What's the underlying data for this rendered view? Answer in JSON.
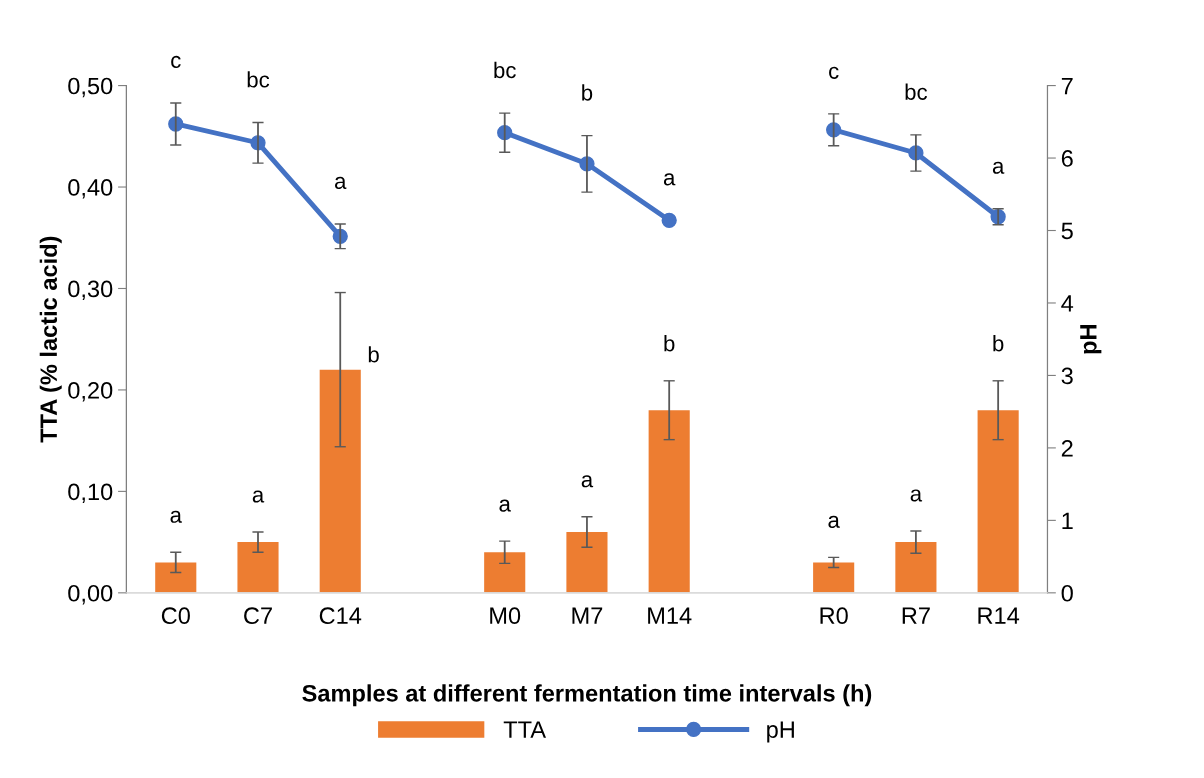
{
  "chart_data": {
    "type": "bar",
    "xlabel": "Samples at different fermentation time intervals (h)",
    "ylabel": "TTA (% lactic acid)",
    "y2label": "pH",
    "categories": [
      "C0",
      "C7",
      "C14",
      null,
      "M0",
      "M7",
      "M14",
      null,
      "R0",
      "R7",
      "R14"
    ],
    "series": [
      {
        "name": "TTA",
        "color": "#ed7d31",
        "values": [
          0.03,
          0.05,
          0.22,
          null,
          0.04,
          0.06,
          0.18,
          null,
          0.03,
          0.05,
          0.18
        ],
        "errors": [
          0.01,
          0.01,
          0.076,
          null,
          0.011,
          0.015,
          0.029,
          null,
          0.005,
          0.011,
          0.029
        ],
        "value_labels": [
          "a",
          "a",
          "b",
          null,
          "a",
          "a",
          "b",
          null,
          "a",
          "a",
          "b"
        ]
      },
      {
        "name": "pH",
        "type": "line",
        "axis": "y2",
        "color": "#4472c4",
        "marker": "circle",
        "values": [
          6.47,
          6.21,
          4.92,
          null,
          6.35,
          5.92,
          5.14,
          null,
          6.39,
          6.07,
          5.19
        ],
        "errors": [
          0.29,
          0.28,
          0.17,
          null,
          0.27,
          0.39,
          null,
          null,
          0.22,
          0.25,
          0.11
        ],
        "value_labels": [
          "c",
          "bc",
          "a",
          null,
          "bc",
          "b",
          "a",
          null,
          "c",
          "bc",
          "a"
        ]
      }
    ],
    "ylim": [
      0,
      0.5
    ],
    "yticks": [
      {
        "value": 0,
        "label": "0,00"
      },
      {
        "value": 0.1,
        "label": "0,10"
      },
      {
        "value": 0.2,
        "label": "0,20"
      },
      {
        "value": 0.3,
        "label": "0,30"
      },
      {
        "value": 0.4,
        "label": "0,40"
      },
      {
        "value": 0.5,
        "label": "0,50"
      }
    ],
    "y2lim": [
      0,
      7
    ],
    "y2ticks": [
      0,
      1,
      2,
      3,
      4,
      5,
      6,
      7
    ],
    "grid": false,
    "legend": "bottom"
  }
}
